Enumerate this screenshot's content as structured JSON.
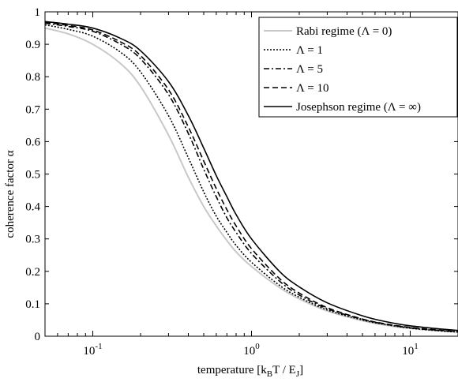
{
  "chart_data": {
    "type": "line",
    "xscale": "log",
    "xlim": [
      0.05,
      20
    ],
    "ylim": [
      0,
      1
    ],
    "xlabel_main": "temperature [k",
    "xlabel_sub1": "B",
    "xlabel_mid": "T / E",
    "xlabel_sub2": "J",
    "xlabel_end": "]",
    "ylabel": "coherence factor α",
    "y_ticks": [
      0,
      0.1,
      0.2,
      0.3,
      0.4,
      0.5,
      0.6,
      0.7,
      0.8,
      0.9,
      1
    ],
    "y_tick_labels": [
      "0",
      "0.1",
      "0.2",
      "0.3",
      "0.4",
      "0.5",
      "0.6",
      "0.7",
      "0.8",
      "0.9",
      "1"
    ],
    "x_ticks": [
      {
        "value": 0.1,
        "base": "10",
        "exp": "-1"
      },
      {
        "value": 1,
        "base": "10",
        "exp": "0"
      },
      {
        "value": 10,
        "base": "10",
        "exp": "1"
      }
    ],
    "legend_position": "top-right",
    "grid": false,
    "x": [
      0.05,
      0.07,
      0.1,
      0.15,
      0.2,
      0.3,
      0.4,
      0.5,
      0.6,
      0.7,
      0.8,
      1.0,
      1.5,
      2.0,
      3.0,
      5.0,
      7.0,
      10.0,
      15.0,
      20.0
    ],
    "series": [
      {
        "name": "Rabi regime (Λ = 0)",
        "color": "#c8c8c8",
        "dash": "",
        "values": [
          0.95,
          0.932,
          0.9,
          0.84,
          0.77,
          0.62,
          0.49,
          0.4,
          0.34,
          0.295,
          0.26,
          0.215,
          0.15,
          0.115,
          0.078,
          0.048,
          0.034,
          0.024,
          0.017,
          0.013
        ]
      },
      {
        "name": "Λ = 1",
        "color": "#000000",
        "dash": "2,2",
        "values": [
          0.96,
          0.946,
          0.925,
          0.875,
          0.815,
          0.68,
          0.55,
          0.445,
          0.37,
          0.32,
          0.28,
          0.228,
          0.157,
          0.12,
          0.081,
          0.05,
          0.036,
          0.025,
          0.017,
          0.013
        ]
      },
      {
        "name": "Λ = 5",
        "color": "#000000",
        "dash": "7,3,2,3",
        "values": [
          0.965,
          0.955,
          0.94,
          0.9,
          0.855,
          0.745,
          0.625,
          0.515,
          0.43,
          0.365,
          0.32,
          0.255,
          0.17,
          0.127,
          0.085,
          0.052,
          0.037,
          0.026,
          0.018,
          0.014
        ]
      },
      {
        "name": "Λ = 10",
        "color": "#000000",
        "dash": "7,4",
        "values": [
          0.968,
          0.958,
          0.944,
          0.907,
          0.865,
          0.76,
          0.645,
          0.54,
          0.455,
          0.39,
          0.34,
          0.27,
          0.178,
          0.133,
          0.088,
          0.053,
          0.038,
          0.027,
          0.019,
          0.014
        ]
      },
      {
        "name": "Josephson regime (Λ = ∞)",
        "color": "#000000",
        "dash": "",
        "values": [
          0.97,
          0.962,
          0.95,
          0.918,
          0.88,
          0.785,
          0.68,
          0.58,
          0.495,
          0.43,
          0.375,
          0.3,
          0.2,
          0.152,
          0.103,
          0.063,
          0.045,
          0.032,
          0.023,
          0.018
        ]
      }
    ]
  }
}
